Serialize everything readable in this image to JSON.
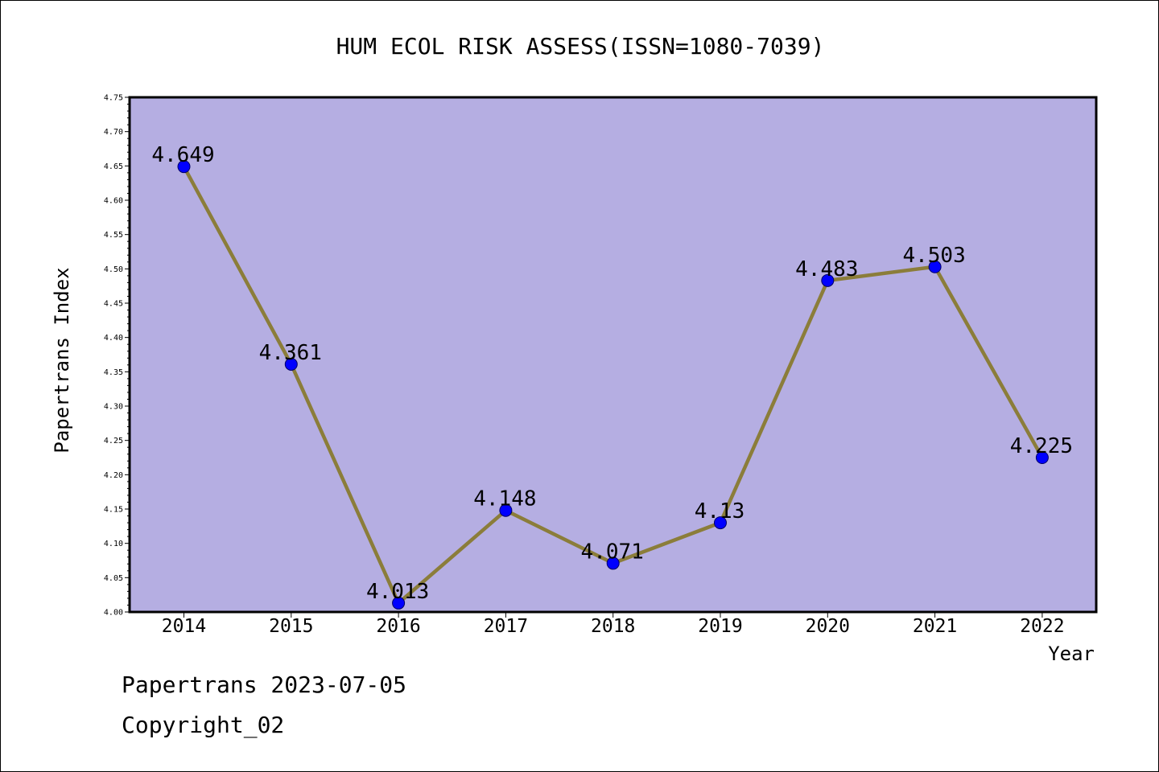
{
  "chart_data": {
    "type": "line",
    "title": "HUM ECOL RISK ASSESS(ISSN=1080-7039)",
    "xlabel": "Year",
    "ylabel": "Papertrans Index",
    "categories": [
      "2014",
      "2015",
      "2016",
      "2017",
      "2018",
      "2019",
      "2020",
      "2021",
      "2022"
    ],
    "values": [
      4.649,
      4.361,
      4.013,
      4.148,
      4.071,
      4.13,
      4.483,
      4.503,
      4.225
    ],
    "data_labels": [
      "4.649",
      "4.361",
      "4.013",
      "4.148",
      "4.071",
      "4.13",
      "4.483",
      "4.503",
      "4.225"
    ],
    "ylim": [
      4.0,
      4.75
    ],
    "yticks": [
      "4.00",
      "4.05",
      "4.10",
      "4.15",
      "4.20",
      "4.25",
      "4.30",
      "4.35",
      "4.40",
      "4.45",
      "4.50",
      "4.55",
      "4.60",
      "4.65",
      "4.70",
      "4.75"
    ],
    "grid": false,
    "legend": "none",
    "colors": {
      "plot_background": "#b5aee2",
      "line": "#8b7d3a",
      "marker": "#0000ff",
      "marker_edge": "#000066"
    }
  },
  "footer": {
    "date_text": "Papertrans 2023-07-05",
    "copyright_text": "Copyright_02"
  }
}
